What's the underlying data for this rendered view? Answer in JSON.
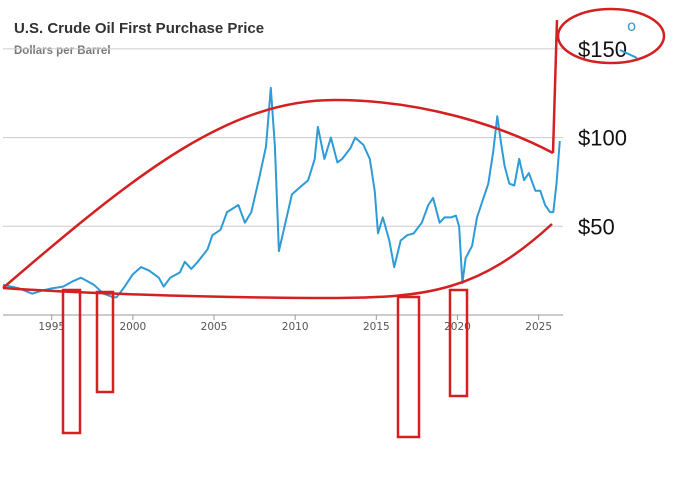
{
  "chart_data": {
    "type": "line",
    "title": "U.S. Crude Oil First Purchase Price",
    "subtitle": "Dollars per Barrel",
    "xlim": [
      1992,
      2026.5
    ],
    "ylim": [
      0,
      155
    ],
    "x_ticks": [
      1995,
      2000,
      2005,
      2010,
      2015,
      2020,
      2025
    ],
    "y_ticks": [
      {
        "value": 50,
        "label": "$50"
      },
      {
        "value": 100,
        "label": "$100"
      },
      {
        "value": 150,
        "label": "$150"
      }
    ],
    "grid": "horizontal",
    "series": [
      {
        "color": "#2e9bd6",
        "points": [
          [
            1992.0,
            17
          ],
          [
            1993.0,
            15
          ],
          [
            1993.8,
            12
          ],
          [
            1994.5,
            14
          ],
          [
            1995.0,
            15
          ],
          [
            1995.7,
            16
          ],
          [
            1996.3,
            19
          ],
          [
            1996.8,
            21
          ],
          [
            1997.0,
            20
          ],
          [
            1997.6,
            17
          ],
          [
            1998.2,
            12
          ],
          [
            1998.8,
            10
          ],
          [
            1999.0,
            10
          ],
          [
            1999.5,
            16
          ],
          [
            2000.0,
            23
          ],
          [
            2000.5,
            27
          ],
          [
            2001.0,
            25
          ],
          [
            2001.6,
            21
          ],
          [
            2001.9,
            16
          ],
          [
            2002.3,
            21
          ],
          [
            2002.9,
            24
          ],
          [
            2003.2,
            30
          ],
          [
            2003.6,
            26
          ],
          [
            2004.0,
            30
          ],
          [
            2004.6,
            37
          ],
          [
            2004.9,
            45
          ],
          [
            2005.4,
            48
          ],
          [
            2005.8,
            58
          ],
          [
            2006.5,
            62
          ],
          [
            2006.9,
            52
          ],
          [
            2007.3,
            58
          ],
          [
            2007.8,
            78
          ],
          [
            2008.2,
            95
          ],
          [
            2008.5,
            128
          ],
          [
            2008.75,
            95
          ],
          [
            2009.0,
            36
          ],
          [
            2009.3,
            48
          ],
          [
            2009.8,
            68
          ],
          [
            2010.3,
            72
          ],
          [
            2010.8,
            76
          ],
          [
            2011.2,
            88
          ],
          [
            2011.4,
            106
          ],
          [
            2011.8,
            88
          ],
          [
            2012.2,
            100
          ],
          [
            2012.6,
            86
          ],
          [
            2012.9,
            88
          ],
          [
            2013.4,
            94
          ],
          [
            2013.7,
            100
          ],
          [
            2014.2,
            96
          ],
          [
            2014.6,
            88
          ],
          [
            2014.9,
            70
          ],
          [
            2015.1,
            46
          ],
          [
            2015.4,
            55
          ],
          [
            2015.8,
            42
          ],
          [
            2016.1,
            27
          ],
          [
            2016.5,
            42
          ],
          [
            2016.9,
            45
          ],
          [
            2017.3,
            46
          ],
          [
            2017.8,
            52
          ],
          [
            2018.2,
            62
          ],
          [
            2018.5,
            66
          ],
          [
            2018.9,
            52
          ],
          [
            2019.2,
            55
          ],
          [
            2019.6,
            55
          ],
          [
            2019.9,
            56
          ],
          [
            2020.1,
            50
          ],
          [
            2020.3,
            18
          ],
          [
            2020.5,
            32
          ],
          [
            2020.9,
            39
          ],
          [
            2021.2,
            55
          ],
          [
            2021.6,
            66
          ],
          [
            2021.9,
            74
          ],
          [
            2022.2,
            92
          ],
          [
            2022.45,
            112
          ],
          [
            2022.7,
            96
          ],
          [
            2022.9,
            84
          ],
          [
            2023.2,
            74
          ],
          [
            2023.5,
            73
          ],
          [
            2023.8,
            88
          ],
          [
            2024.1,
            76
          ],
          [
            2024.4,
            80
          ],
          [
            2024.8,
            70
          ],
          [
            2025.1,
            70
          ],
          [
            2025.4,
            62
          ],
          [
            2025.7,
            58
          ],
          [
            2025.9,
            58
          ],
          [
            2026.1,
            74
          ],
          [
            2026.3,
            98
          ]
        ]
      }
    ]
  },
  "annotations": {
    "stroke_color": "#d42020",
    "accent_color": "#2e9bd6",
    "doodle_text": "o"
  }
}
